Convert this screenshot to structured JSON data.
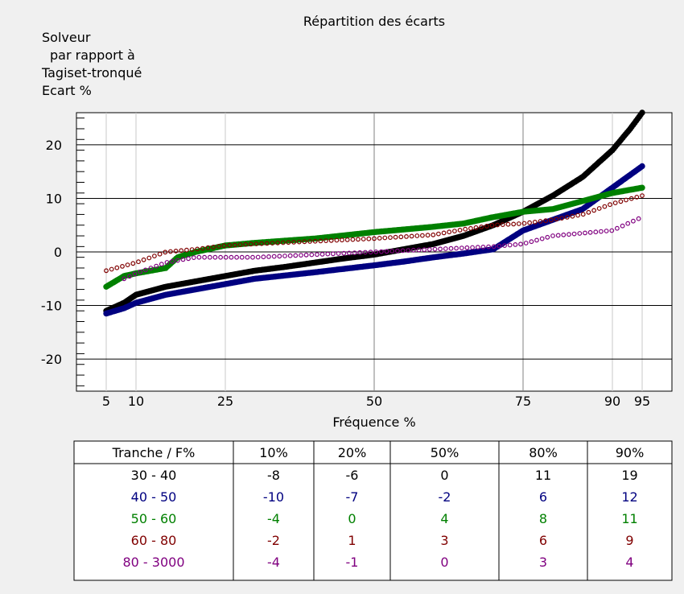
{
  "chart_data": {
    "type": "scatter",
    "title": "Répartition des écarts",
    "ylabel_lines": [
      "Solveur",
      "par rapport à",
      "Tagiset-tronqué",
      "Ecart %"
    ],
    "xlabel": "Fréquence %",
    "xlim": [
      0,
      100
    ],
    "ylim": [
      -26,
      26
    ],
    "x_ticks": [
      5,
      10,
      25,
      50,
      75,
      90,
      95
    ],
    "y_ticks": [
      20,
      10,
      0,
      -10,
      -20
    ],
    "grid": true,
    "series": [
      {
        "name": "30 - 40",
        "color": "#000000",
        "points": [
          [
            5,
            -11
          ],
          [
            8,
            -9.5
          ],
          [
            10,
            -8
          ],
          [
            15,
            -6.5
          ],
          [
            20,
            -5.5
          ],
          [
            25,
            -4.5
          ],
          [
            30,
            -3.5
          ],
          [
            35,
            -2.8
          ],
          [
            40,
            -2
          ],
          [
            45,
            -1.2
          ],
          [
            50,
            -0.5
          ],
          [
            55,
            0.5
          ],
          [
            60,
            1.5
          ],
          [
            65,
            3
          ],
          [
            70,
            5
          ],
          [
            75,
            7.5
          ],
          [
            80,
            10.5
          ],
          [
            85,
            14
          ],
          [
            90,
            19
          ],
          [
            93,
            23
          ],
          [
            95,
            26
          ]
        ]
      },
      {
        "name": "40 - 50",
        "color": "#000080",
        "points": [
          [
            5,
            -11.5
          ],
          [
            8,
            -10.5
          ],
          [
            10,
            -9.5
          ],
          [
            15,
            -8
          ],
          [
            20,
            -7
          ],
          [
            25,
            -6
          ],
          [
            30,
            -5
          ],
          [
            40,
            -3.8
          ],
          [
            50,
            -2.5
          ],
          [
            55,
            -1.8
          ],
          [
            60,
            -1
          ],
          [
            65,
            -0.3
          ],
          [
            70,
            0.5
          ],
          [
            75,
            4
          ],
          [
            80,
            6
          ],
          [
            85,
            8
          ],
          [
            90,
            12
          ],
          [
            95,
            16
          ]
        ]
      },
      {
        "name": "50 - 60",
        "color": "#008000",
        "points": [
          [
            5,
            -6.5
          ],
          [
            8,
            -4.5
          ],
          [
            10,
            -4
          ],
          [
            15,
            -3
          ],
          [
            17,
            -1
          ],
          [
            20,
            0
          ],
          [
            25,
            1.2
          ],
          [
            30,
            1.7
          ],
          [
            40,
            2.5
          ],
          [
            50,
            3.7
          ],
          [
            60,
            4.7
          ],
          [
            65,
            5.3
          ],
          [
            70,
            6.5
          ],
          [
            75,
            7.5
          ],
          [
            80,
            8
          ],
          [
            85,
            9.5
          ],
          [
            90,
            11
          ],
          [
            95,
            12
          ]
        ]
      },
      {
        "name": "60 - 80",
        "color": "#800000",
        "points": [
          [
            5,
            -3.5
          ],
          [
            10,
            -2
          ],
          [
            15,
            0
          ],
          [
            20,
            0.5
          ],
          [
            25,
            1.2
          ],
          [
            30,
            1.5
          ],
          [
            40,
            2
          ],
          [
            50,
            2.5
          ],
          [
            60,
            3.2
          ],
          [
            65,
            4.2
          ],
          [
            70,
            5
          ],
          [
            75,
            5.3
          ],
          [
            80,
            6
          ],
          [
            85,
            7
          ],
          [
            90,
            9
          ],
          [
            95,
            10.5
          ]
        ]
      },
      {
        "name": "80 - 3000",
        "color": "#800080",
        "points": [
          [
            8,
            -5
          ],
          [
            10,
            -4
          ],
          [
            15,
            -2
          ],
          [
            20,
            -1
          ],
          [
            30,
            -1
          ],
          [
            40,
            -0.5
          ],
          [
            50,
            0
          ],
          [
            60,
            0.5
          ],
          [
            70,
            1
          ],
          [
            75,
            1.5
          ],
          [
            80,
            3
          ],
          [
            85,
            3.5
          ],
          [
            90,
            4
          ],
          [
            95,
            6.5
          ]
        ]
      }
    ]
  },
  "table": {
    "headers": [
      "Tranche / F%",
      "10%",
      "20%",
      "50%",
      "80%",
      "90%"
    ],
    "rows": [
      {
        "label": "30 - 40",
        "color": "#000000",
        "values": [
          "-8",
          "-6",
          "0",
          "11",
          "19"
        ]
      },
      {
        "label": "40 - 50",
        "color": "#000080",
        "values": [
          "-10",
          "-7",
          "-2",
          "6",
          "12"
        ]
      },
      {
        "label": "50 - 60",
        "color": "#008000",
        "values": [
          "-4",
          "0",
          "4",
          "8",
          "11"
        ]
      },
      {
        "label": "60 - 80",
        "color": "#800000",
        "values": [
          "-2",
          "1",
          "3",
          "6",
          "9"
        ]
      },
      {
        "label": "80 - 3000",
        "color": "#800080",
        "values": [
          "-4",
          "-1",
          "0",
          "3",
          "4"
        ]
      }
    ]
  }
}
